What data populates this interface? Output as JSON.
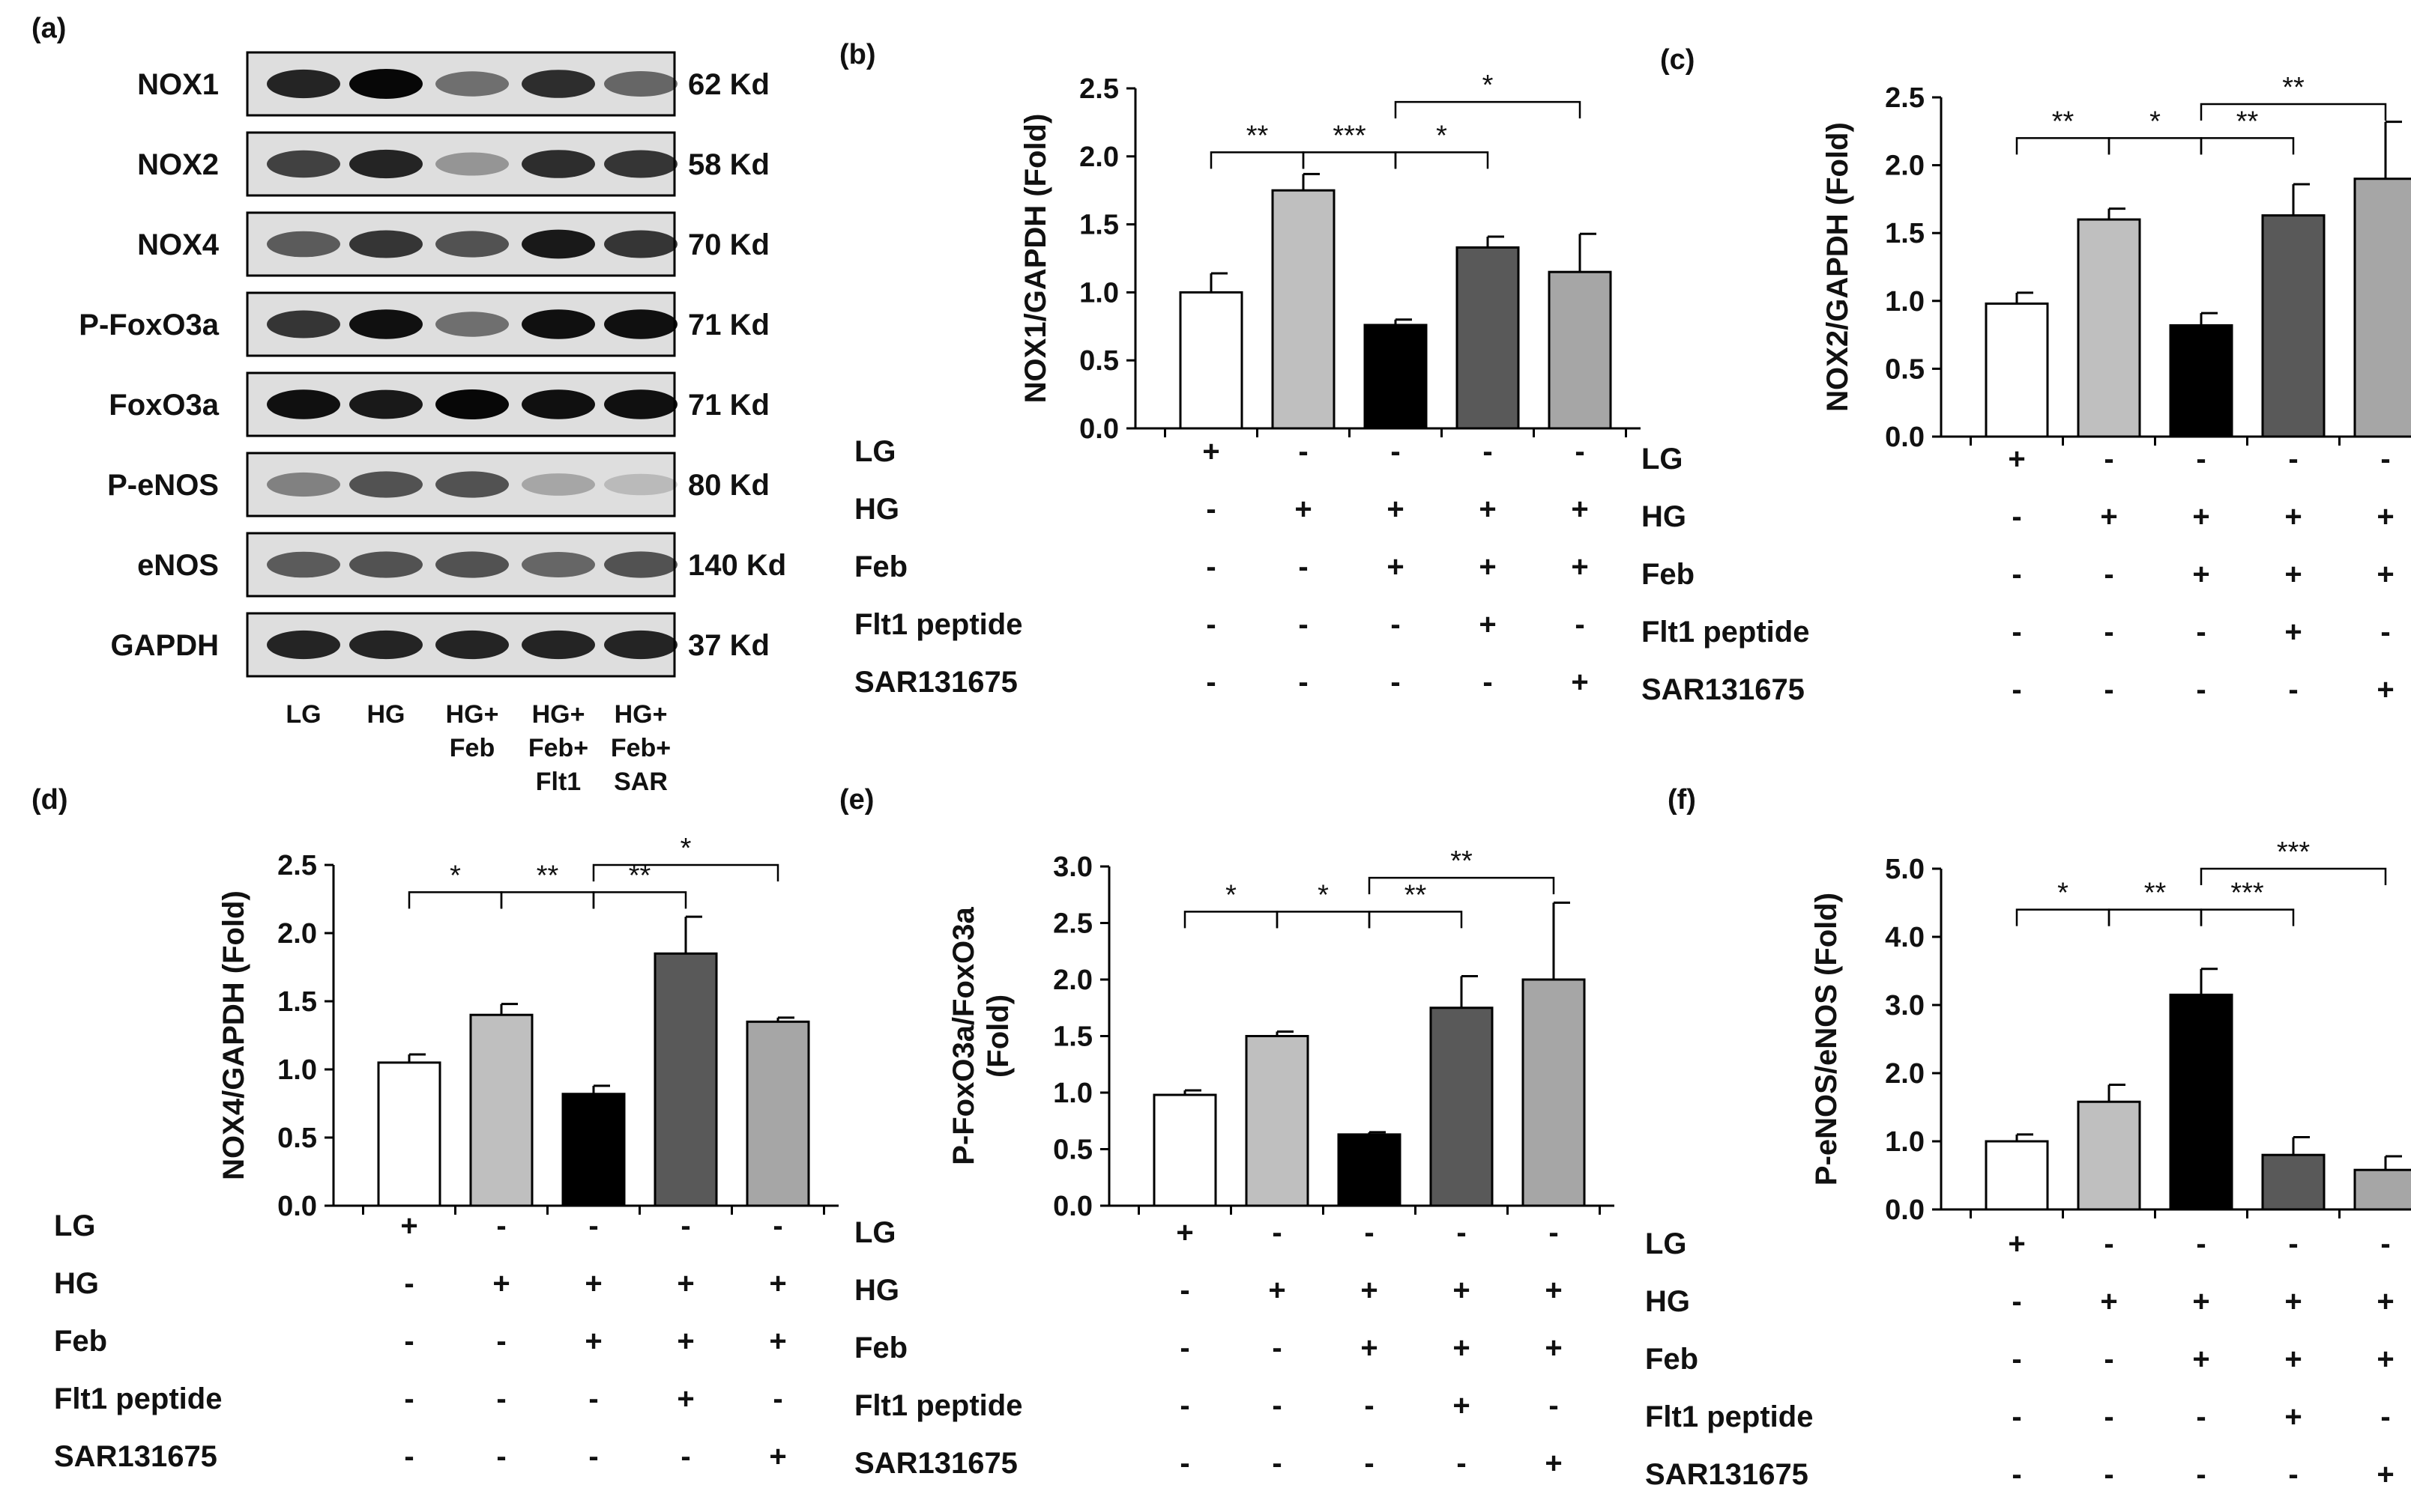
{
  "blot": {
    "panel_label": "(a)",
    "rows": [
      {
        "protein": "NOX1",
        "size": "62 Kd"
      },
      {
        "protein": "NOX2",
        "size": "58 Kd"
      },
      {
        "protein": "NOX4",
        "size": "70 Kd"
      },
      {
        "protein": "P-FoxO3a",
        "size": "71 Kd"
      },
      {
        "protein": "FoxO3a",
        "size": "71 Kd"
      },
      {
        "protein": "P-eNOS",
        "size": "80 Kd"
      },
      {
        "protein": "eNOS",
        "size": "140 Kd"
      },
      {
        "protein": "GAPDH",
        "size": "37 Kd"
      }
    ],
    "lanes": [
      [
        "LG"
      ],
      [
        "HG"
      ],
      [
        "HG+",
        "Feb"
      ],
      [
        "HG+",
        "Feb+",
        "Flt1"
      ],
      [
        "HG+",
        "Feb+",
        "SAR"
      ]
    ],
    "band_intensity": [
      [
        0.85,
        1.0,
        0.45,
        0.8,
        0.5
      ],
      [
        0.7,
        0.85,
        0.25,
        0.8,
        0.75
      ],
      [
        0.55,
        0.75,
        0.6,
        0.9,
        0.75
      ],
      [
        0.75,
        0.95,
        0.45,
        0.95,
        0.95
      ],
      [
        0.95,
        0.9,
        1.0,
        0.95,
        0.95
      ],
      [
        0.35,
        0.6,
        0.6,
        0.15,
        0.05
      ],
      [
        0.55,
        0.6,
        0.6,
        0.5,
        0.6
      ],
      [
        0.85,
        0.85,
        0.85,
        0.85,
        0.85
      ]
    ]
  },
  "treatments": [
    "LG",
    "HG",
    "Feb",
    "Flt1 peptide",
    "SAR131675"
  ],
  "treatment_matrix": [
    [
      "+",
      "-",
      "-",
      "-",
      "-"
    ],
    [
      "-",
      "+",
      "+",
      "+",
      "+"
    ],
    [
      "-",
      "-",
      "+",
      "+",
      "+"
    ],
    [
      "-",
      "-",
      "-",
      "+",
      "-"
    ],
    [
      "-",
      "-",
      "-",
      "-",
      "+"
    ]
  ],
  "colors": {
    "bar_fills": [
      "#ffffff",
      "#bfbfbf",
      "#000000",
      "#595959",
      "#a6a6a6"
    ],
    "axis": "#000000"
  },
  "chart_data": [
    {
      "panel": "(b)",
      "type": "bar",
      "ylabel": [
        "NOX1/GAPDH (Fold)"
      ],
      "ylim": [
        0,
        2.5
      ],
      "yticks": [
        "0.0",
        "0.5",
        "1.0",
        "1.5",
        "2.0",
        "2.5"
      ],
      "values": [
        1.0,
        1.75,
        0.76,
        1.33,
        1.15
      ],
      "errors": [
        0.14,
        0.12,
        0.04,
        0.08,
        0.28
      ],
      "significance": [
        {
          "from": 0,
          "to": 1,
          "label": "**",
          "y": 2.03
        },
        {
          "from": 1,
          "to": 2,
          "label": "***",
          "y": 2.03
        },
        {
          "from": 2,
          "to": 3,
          "label": "*",
          "y": 2.03
        },
        {
          "from": 2,
          "to": 4,
          "label": "*",
          "y": 2.4
        }
      ]
    },
    {
      "panel": "(c)",
      "type": "bar",
      "ylabel": [
        "NOX2/GAPDH (Fold)"
      ],
      "ylim": [
        0,
        2.5
      ],
      "yticks": [
        "0.0",
        "0.5",
        "1.0",
        "1.5",
        "2.0",
        "2.5"
      ],
      "values": [
        0.98,
        1.6,
        0.82,
        1.63,
        1.9
      ],
      "errors": [
        0.08,
        0.08,
        0.09,
        0.23,
        0.42
      ],
      "significance": [
        {
          "from": 0,
          "to": 1,
          "label": "**",
          "y": 2.2
        },
        {
          "from": 1,
          "to": 2,
          "label": "*",
          "y": 2.2
        },
        {
          "from": 2,
          "to": 3,
          "label": "**",
          "y": 2.2
        },
        {
          "from": 2,
          "to": 4,
          "label": "**",
          "y": 2.45
        }
      ]
    },
    {
      "panel": "(d)",
      "type": "bar",
      "ylabel": [
        "NOX4/GAPDH (Fold)"
      ],
      "ylim": [
        0,
        2.5
      ],
      "yticks": [
        "0.0",
        "0.5",
        "1.0",
        "1.5",
        "2.0",
        "2.5"
      ],
      "values": [
        1.05,
        1.4,
        0.82,
        1.85,
        1.35
      ],
      "errors": [
        0.06,
        0.08,
        0.06,
        0.27,
        0.03
      ],
      "significance": [
        {
          "from": 0,
          "to": 1,
          "label": "*",
          "y": 2.3
        },
        {
          "from": 1,
          "to": 2,
          "label": "**",
          "y": 2.3
        },
        {
          "from": 2,
          "to": 3,
          "label": "**",
          "y": 2.3
        },
        {
          "from": 2,
          "to": 4,
          "label": "*",
          "y": 2.5
        }
      ]
    },
    {
      "panel": "(e)",
      "type": "bar",
      "ylabel": [
        "P-FoxO3a/FoxO3a",
        "(Fold)"
      ],
      "ylim": [
        0,
        3.0
      ],
      "yticks": [
        "0.0",
        "0.5",
        "1.0",
        "1.5",
        "2.0",
        "2.5",
        "3.0"
      ],
      "values": [
        0.98,
        1.5,
        0.63,
        1.75,
        2.0
      ],
      "errors": [
        0.04,
        0.04,
        0.02,
        0.28,
        0.68
      ],
      "significance": [
        {
          "from": 0,
          "to": 1,
          "label": "*",
          "y": 2.6
        },
        {
          "from": 1,
          "to": 2,
          "label": "*",
          "y": 2.6
        },
        {
          "from": 2,
          "to": 3,
          "label": "**",
          "y": 2.6
        },
        {
          "from": 2,
          "to": 4,
          "label": "**",
          "y": 2.9
        }
      ]
    },
    {
      "panel": "(f)",
      "type": "bar",
      "ylabel": [
        "P-eNOS/eNOS (Fold)"
      ],
      "ylim": [
        0,
        5.0
      ],
      "yticks": [
        "0.0",
        "1.0",
        "2.0",
        "3.0",
        "4.0",
        "5.0"
      ],
      "values": [
        1.0,
        1.58,
        3.15,
        0.8,
        0.58
      ],
      "errors": [
        0.1,
        0.25,
        0.38,
        0.26,
        0.2
      ],
      "significance": [
        {
          "from": 0,
          "to": 1,
          "label": "*",
          "y": 4.4
        },
        {
          "from": 1,
          "to": 2,
          "label": "**",
          "y": 4.4
        },
        {
          "from": 2,
          "to": 3,
          "label": "***",
          "y": 4.4
        },
        {
          "from": 2,
          "to": 4,
          "label": "***",
          "y": 5.0
        }
      ]
    }
  ]
}
